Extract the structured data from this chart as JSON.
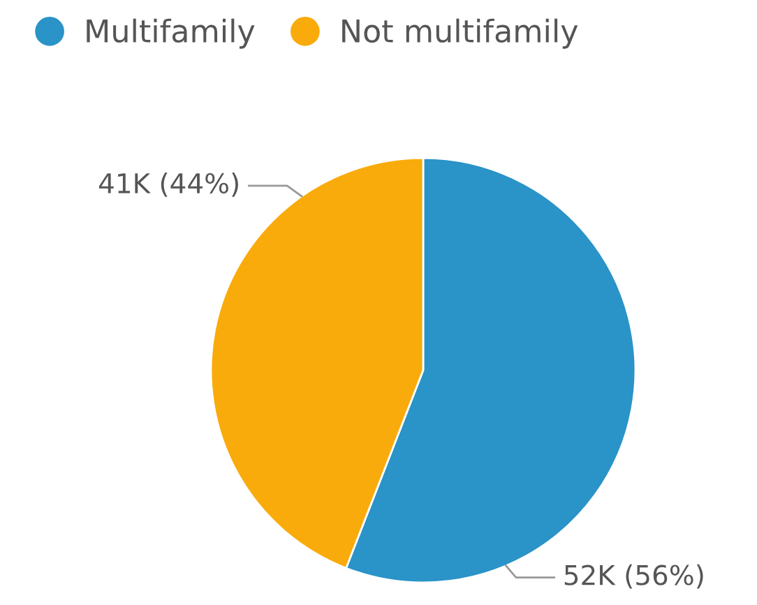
{
  "chart_data": {
    "type": "pie",
    "categories": [
      "Multifamily",
      "Not multifamily"
    ],
    "values": [
      52000,
      41000
    ],
    "value_labels": [
      "52K (56%)",
      "41K (44%)"
    ],
    "colors": [
      "#2a93c8",
      "#f9ab0b"
    ],
    "legend": "top left"
  }
}
